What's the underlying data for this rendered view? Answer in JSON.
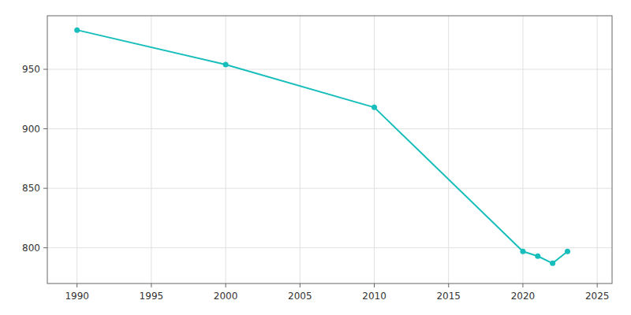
{
  "chart_data": {
    "type": "line",
    "x": [
      1990,
      2000,
      2010,
      2020,
      2021,
      2022,
      2023
    ],
    "values": [
      983,
      954,
      918,
      797,
      793,
      787,
      797
    ],
    "color": "#17BEBB",
    "marker": "circle",
    "xlim": [
      1988,
      2026
    ],
    "ylim": [
      770,
      995
    ],
    "xticks": [
      1990,
      1995,
      2000,
      2005,
      2010,
      2015,
      2020,
      2025
    ],
    "yticks": [
      800,
      850,
      900,
      950
    ],
    "grid": true
  }
}
